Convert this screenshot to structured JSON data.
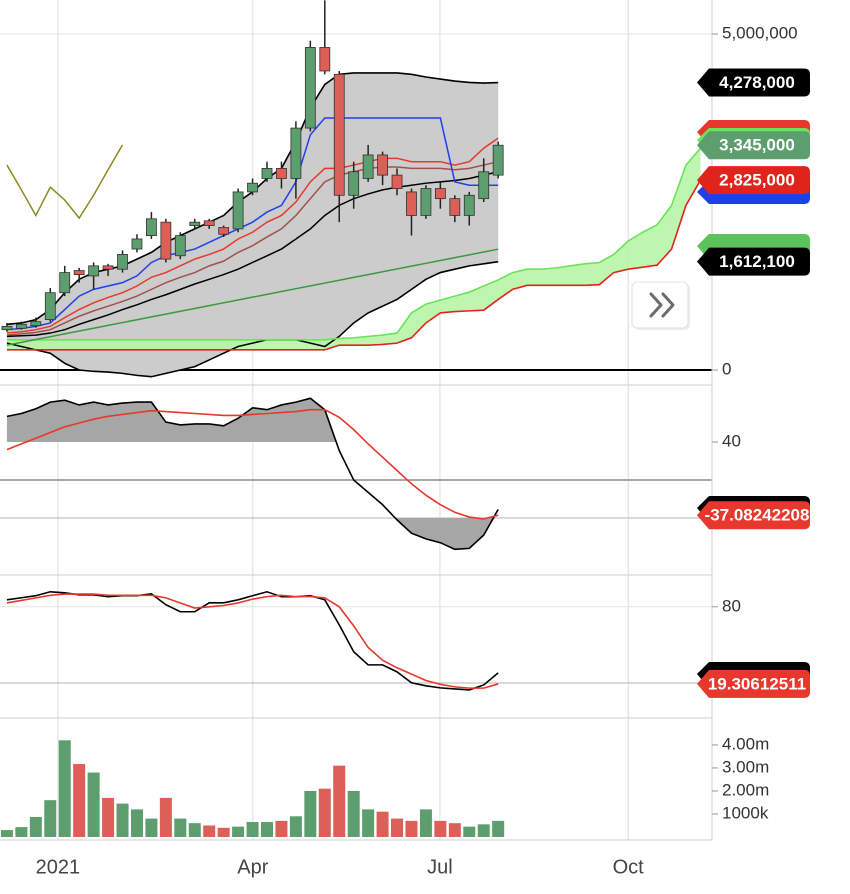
{
  "chart_data": [
    {
      "type": "candlestick",
      "open": [
        600000,
        620000,
        660000,
        750000,
        1150000,
        1480000,
        1400000,
        1550000,
        1500000,
        1800000,
        2000000,
        2200000,
        1700000,
        2150000,
        2220000,
        2120000,
        2100000,
        2650000,
        2850000,
        3000000,
        2850000,
        3600000,
        4800000,
        4400000,
        2600000,
        2850000,
        3200000,
        2900000,
        2650000,
        2300000,
        2700000,
        2550000,
        2300000,
        2550000,
        2900000
      ],
      "high": [
        700000,
        720000,
        780000,
        1220000,
        1550000,
        1520000,
        1600000,
        1580000,
        1780000,
        2020000,
        2350000,
        2250000,
        2050000,
        2250000,
        2250000,
        2150000,
        2700000,
        2850000,
        3100000,
        3100000,
        3700000,
        4900000,
        5500000,
        4450000,
        3100000,
        3350000,
        3250000,
        3000000,
        2700000,
        2750000,
        2800000,
        2600000,
        2650000,
        3150000,
        3400000
      ],
      "low": [
        570000,
        600000,
        630000,
        720000,
        1100000,
        1300000,
        1200000,
        1400000,
        1450000,
        1750000,
        1950000,
        1600000,
        1650000,
        2100000,
        2100000,
        1980000,
        2050000,
        2600000,
        2800000,
        2700000,
        2550000,
        3550000,
        4400000,
        2200000,
        2400000,
        2800000,
        2750000,
        2600000,
        2000000,
        2250000,
        2400000,
        2200000,
        2150000,
        2500000,
        2850000
      ],
      "close": [
        650000,
        680000,
        720000,
        1150000,
        1450000,
        1420000,
        1550000,
        1500000,
        1720000,
        1950000,
        2250000,
        1650000,
        2000000,
        2200000,
        2150000,
        2020000,
        2650000,
        2780000,
        3000000,
        2850000,
        3600000,
        4800000,
        4450000,
        2600000,
        2950000,
        3200000,
        2900000,
        2700000,
        2300000,
        2700000,
        2550000,
        2300000,
        2600000,
        2950000,
        3345000
      ],
      "close_label": "3,345,000",
      "up_color": "#5c9e6e",
      "down_color": "#dc5f58",
      "ylim": [
        -223000,
        5506000
      ],
      "yticks": [
        0,
        {
          "value": 5000000,
          "label": "5,000,000"
        }
      ],
      "grid": true,
      "overlays": [
        {
          "type": "band",
          "color": "#000000",
          "fill": "#cccccc",
          "upper": [
            680000,
            700000,
            750000,
            900000,
            1150000,
            1350000,
            1450000,
            1500000,
            1550000,
            1650000,
            1750000,
            1900000,
            2000000,
            2100000,
            2200000,
            2300000,
            2500000,
            2650000,
            2850000,
            3000000,
            3400000,
            3900000,
            4250000,
            4400000,
            4420000,
            4420000,
            4420000,
            4420000,
            4400000,
            4360000,
            4330000,
            4300000,
            4280000,
            4270000,
            4278000
          ],
          "lower": [
            400000,
            350000,
            300000,
            250000,
            100000,
            0,
            -20000,
            -30000,
            -50000,
            -80000,
            -100000,
            -50000,
            0,
            50000,
            150000,
            250000,
            350000,
            400000,
            450000,
            450000,
            450000,
            400000,
            350000,
            500000,
            700000,
            850000,
            950000,
            1050000,
            1200000,
            1350000,
            1450000,
            1500000,
            1550000,
            1580000,
            1612100
          ],
          "upper_label": "4,278,000",
          "lower_label": "1,612,100"
        },
        {
          "type": "cloud",
          "fill": "#b8f5a6",
          "upper_color": "#6be35a",
          "lower_color": "#e0241b",
          "upper": [
            450000,
            450000,
            450000,
            450000,
            450000,
            450000,
            450000,
            450000,
            450000,
            450000,
            450000,
            450000,
            450000,
            450000,
            450000,
            450000,
            450000,
            450000,
            450000,
            450000,
            450000,
            450000,
            450000,
            470000,
            480000,
            500000,
            520000,
            550000,
            850000,
            980000,
            1040000,
            1100000,
            1160000,
            1250000,
            1340000,
            1450000,
            1500000,
            1500000,
            1520000,
            1550000,
            1580000,
            1600000,
            1720000,
            1920000,
            2050000,
            2160000,
            2450000,
            3050000,
            3300000
          ],
          "lower": [
            300000,
            300000,
            300000,
            300000,
            300000,
            300000,
            300000,
            300000,
            300000,
            300000,
            300000,
            300000,
            300000,
            300000,
            300000,
            300000,
            300000,
            300000,
            300000,
            300000,
            300000,
            300000,
            300000,
            370000,
            370000,
            370000,
            380000,
            400000,
            480000,
            700000,
            850000,
            870000,
            880000,
            890000,
            1050000,
            1200000,
            1260000,
            1260000,
            1260000,
            1260000,
            1260000,
            1270000,
            1450000,
            1500000,
            1530000,
            1560000,
            1800000,
            2450000,
            2825000
          ],
          "lower_label": "2,825,000"
        },
        {
          "type": "line",
          "color": "#3a9a3a",
          "values": [
            370000,
            412000,
            454000,
            496000,
            538000,
            580000,
            622000,
            664000,
            706000,
            748000,
            790000,
            832000,
            874000,
            916000,
            958000,
            1000000,
            1042000,
            1084000,
            1126000,
            1168000,
            1210000,
            1252000,
            1294000,
            1336000,
            1378000,
            1420000,
            1462000,
            1504000,
            1546000,
            1588000,
            1630000,
            1672000,
            1714000,
            1756000,
            1798000
          ]
        },
        {
          "type": "line",
          "color": "#000000",
          "values": [
            500000,
            510000,
            520000,
            550000,
            600000,
            680000,
            750000,
            820000,
            900000,
            970000,
            1050000,
            1120000,
            1200000,
            1280000,
            1350000,
            1420000,
            1500000,
            1600000,
            1700000,
            1800000,
            1950000,
            2100000,
            2300000,
            2450000,
            2550000,
            2620000,
            2680000,
            2720000,
            2750000,
            2780000,
            2800000,
            2820000,
            2850000,
            2900000,
            2950000
          ]
        },
        {
          "type": "line",
          "color": "#a0524a",
          "values": [
            520000,
            540000,
            560000,
            600000,
            700000,
            800000,
            880000,
            950000,
            1020000,
            1100000,
            1200000,
            1300000,
            1380000,
            1450000,
            1550000,
            1620000,
            1750000,
            1850000,
            1980000,
            2100000,
            2300000,
            2550000,
            2800000,
            2900000,
            2950000,
            3000000,
            3020000,
            3020000,
            3000000,
            3000000,
            3000000,
            2980000,
            3000000,
            3050000,
            3100000
          ]
        },
        {
          "type": "line",
          "color": "#e8372c",
          "values": [
            550000,
            570000,
            600000,
            650000,
            780000,
            900000,
            1000000,
            1080000,
            1150000,
            1250000,
            1380000,
            1450000,
            1550000,
            1650000,
            1720000,
            1800000,
            1950000,
            2050000,
            2200000,
            2300000,
            2500000,
            2800000,
            3000000,
            3000000,
            3050000,
            3100000,
            3150000,
            3150000,
            3100000,
            3100000,
            3100000,
            3050000,
            3100000,
            3300000,
            3450000
          ]
        },
        {
          "type": "line",
          "color": "#1f3fe8",
          "values": [
            600000,
            620000,
            650000,
            700000,
            900000,
            1100000,
            1200000,
            1250000,
            1300000,
            1400000,
            1600000,
            1700000,
            1750000,
            1800000,
            1900000,
            2000000,
            2100000,
            2200000,
            2350000,
            2450000,
            2800000,
            3500000,
            3750000,
            3750000,
            3750000,
            3750000,
            3750000,
            3750000,
            3750000,
            3750000,
            3750000,
            2800000,
            2750000,
            2750000,
            2750000
          ]
        },
        {
          "type": "line",
          "color": "#8a8a20",
          "values": [
            3050000,
            2680000,
            2300000,
            2720000,
            2530000,
            2260000,
            2600000,
            2980000,
            3350000
          ]
        }
      ]
    },
    {
      "type": "line",
      "ylim": [
        -100,
        100
      ],
      "yticks": [
        40
      ],
      "grid": false,
      "levels": [
        0,
        -40
      ],
      "fill_levels": [
        40,
        -40
      ],
      "fill": "#a6a6a6",
      "series": [
        {
          "color": "#000000",
          "values": [
            67,
            70,
            75,
            82,
            84,
            79,
            82,
            79,
            81,
            82,
            82,
            61,
            58,
            59,
            59,
            57,
            65,
            76,
            74,
            79,
            82,
            86,
            74,
            31,
            0,
            -13,
            -26,
            -42,
            -56,
            -62,
            -66,
            -73,
            -72,
            -58,
            -31
          ]
        },
        {
          "color": "#e8372c",
          "values": [
            32,
            38,
            44,
            50,
            56,
            60,
            64,
            67,
            69,
            71,
            73,
            72,
            71,
            70,
            69,
            68,
            68,
            69,
            70,
            71,
            72,
            74,
            74,
            66,
            53,
            38,
            24,
            10,
            -4,
            -16,
            -26,
            -34,
            -39,
            -41,
            -37.08242208
          ],
          "value_label": "-37.08242208"
        }
      ]
    },
    {
      "type": "line",
      "ylim": [
        -7.5,
        105
      ],
      "yticks": [
        80
      ],
      "grid": true,
      "levels": [
        20
      ],
      "series": [
        {
          "color": "#000000",
          "values": [
            85.5,
            87.1,
            88.7,
            91.8,
            91,
            89.4,
            89.4,
            87.9,
            88.7,
            88.7,
            90.2,
            81.6,
            76.1,
            76.1,
            83.1,
            83.1,
            85.5,
            88.7,
            91.8,
            87.9,
            87.9,
            88.7,
            85.5,
            65.8,
            44.6,
            34.3,
            34.3,
            28.8,
            20.2,
            17.8,
            16.2,
            15.4,
            14.6,
            18.5,
            28
          ]
        },
        {
          "color": "#e8372c",
          "values": [
            83,
            85,
            87,
            89,
            90,
            90,
            90,
            89,
            89,
            89,
            89,
            87,
            83,
            79,
            80,
            81,
            83,
            86,
            88,
            89,
            88,
            88,
            87,
            80,
            65,
            48,
            38,
            32,
            27,
            22,
            19,
            17,
            16,
            16,
            19.30612511
          ],
          "value_label": "19.30612511"
        }
      ]
    },
    {
      "type": "bar",
      "values": [
        300000,
        430000,
        870000,
        1600000,
        4200000,
        3170000,
        2800000,
        1700000,
        1450000,
        1200000,
        800000,
        1700000,
        800000,
        600000,
        500000,
        400000,
        450000,
        650000,
        650000,
        700000,
        900000,
        2000000,
        2100000,
        3100000,
        2000000,
        1200000,
        1100000,
        800000,
        700000,
        1200000,
        700000,
        600000,
        450000,
        550000,
        700000
      ],
      "ylim": [
        0,
        5170000
      ],
      "yticks": [
        {
          "value": 1000000,
          "label": "1000k"
        },
        {
          "value": 2000000,
          "label": "2.00m"
        },
        {
          "value": 3000000,
          "label": "3.00m"
        },
        {
          "value": 4000000,
          "label": "4.00m"
        }
      ],
      "grid": false,
      "xlim": [
        -0.48,
        48.8
      ],
      "xticks": [
        {
          "value": 3.53,
          "label": "2021"
        },
        {
          "value": 17.02,
          "label": "Apr"
        },
        {
          "value": 29.97,
          "label": "Jul"
        },
        {
          "value": 43.0,
          "label": "Oct"
        }
      ]
    }
  ]
}
